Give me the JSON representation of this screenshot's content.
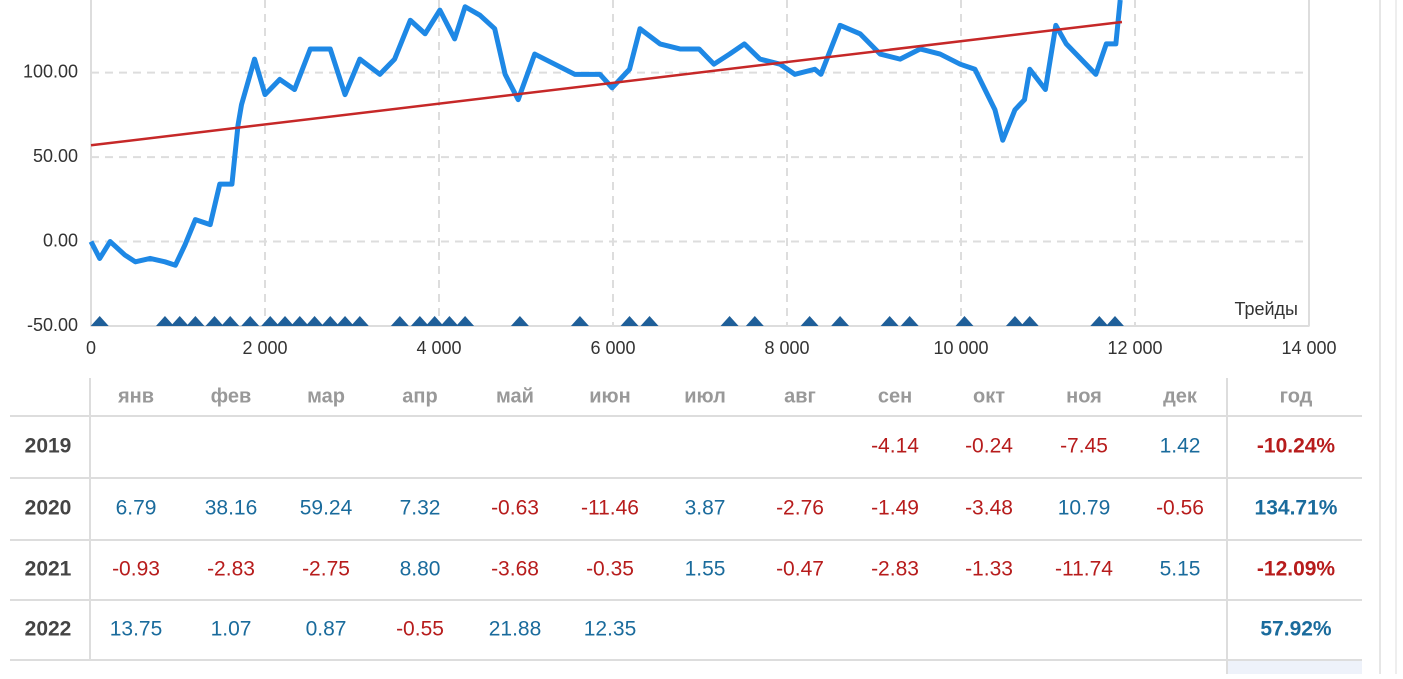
{
  "chart_data": {
    "type": "line",
    "xlim": [
      0,
      14000
    ],
    "ylim": [
      -50,
      143
    ],
    "xticks": [
      0,
      {
        "value": 2000,
        "label": "2 000"
      },
      {
        "value": 4000,
        "label": "4 000"
      },
      {
        "value": 6000,
        "label": "6 000"
      },
      {
        "value": 8000,
        "label": "8 000"
      },
      {
        "value": 10000,
        "label": "10 000"
      },
      {
        "value": 12000,
        "label": "12 000"
      },
      {
        "value": 14000,
        "label": "14 000"
      }
    ],
    "yticks": [
      {
        "value": -50,
        "label": "-50.00"
      },
      {
        "value": 0,
        "label": "0.00"
      },
      {
        "value": 50,
        "label": "50.00"
      },
      {
        "value": 100,
        "label": "100.00"
      }
    ],
    "x_label": "Трейды",
    "grid": true,
    "series": [
      {
        "color": "#1e88e5",
        "x": [
          0,
          100,
          220,
          390,
          510,
          680,
          850,
          970,
          1080,
          1200,
          1370,
          1480,
          1620,
          1690,
          1730,
          1880,
          2000,
          2170,
          2340,
          2520,
          2750,
          2920,
          3090,
          3320,
          3490,
          3670,
          3840,
          4010,
          4180,
          4300,
          4470,
          4640,
          4760,
          4910,
          5100,
          5330,
          5560,
          5850,
          5990,
          6190,
          6310,
          6540,
          6770,
          6990,
          7160,
          7340,
          7510,
          7690,
          7920,
          8090,
          8320,
          8390,
          8610,
          8840,
          9070,
          9300,
          9530,
          9760,
          9990,
          10160,
          10390,
          10480,
          10620,
          10730,
          10790,
          10970,
          11090,
          11210,
          11380,
          11550,
          11670,
          11780,
          11830
        ],
        "values": [
          0,
          -10,
          0,
          -8,
          -12,
          -10,
          -12,
          -14,
          -2,
          13,
          10,
          34,
          34,
          69,
          81,
          108,
          87,
          96,
          90,
          114,
          114,
          87,
          108,
          99,
          108,
          131,
          123,
          137,
          120,
          139,
          134,
          126,
          99,
          84,
          111,
          105,
          99,
          99,
          91,
          102,
          126,
          117,
          114,
          114,
          105,
          111,
          117,
          108,
          105,
          99,
          102,
          99,
          128,
          123,
          111,
          108,
          114,
          111,
          105,
          102,
          78,
          60,
          78,
          84,
          102,
          90,
          128,
          117,
          108,
          99,
          117,
          117,
          143
        ]
      },
      {
        "color": "#c62828",
        "x": [
          0,
          11850
        ],
        "values": [
          57,
          130
        ]
      }
    ],
    "markers": {
      "color": "#1f5f99",
      "x": [
        100,
        850,
        1020,
        1200,
        1420,
        1600,
        1830,
        2060,
        2230,
        2400,
        2570,
        2750,
        2920,
        3090,
        3550,
        3780,
        3950,
        4120,
        4300,
        4930,
        5620,
        6190,
        6420,
        7340,
        7630,
        8260,
        8610,
        9180,
        9410,
        10040,
        10620,
        10790,
        11590,
        11770
      ]
    }
  },
  "table": {
    "header": [
      "янв",
      "фев",
      "мар",
      "апр",
      "май",
      "июн",
      "июл",
      "авг",
      "сен",
      "окт",
      "ноя",
      "дек",
      "год"
    ],
    "positive_color": "#1a6b9c",
    "negative_color": "#b71c1c",
    "rows": [
      [
        "2019",
        null,
        null,
        null,
        null,
        null,
        null,
        null,
        null,
        "-4.14",
        "-0.24",
        "-7.45",
        "1.42",
        "-10.24%"
      ],
      [
        "2020",
        "6.79",
        "38.16",
        "59.24",
        "7.32",
        "-0.63",
        "-11.46",
        "3.87",
        "-2.76",
        "-1.49",
        "-3.48",
        "10.79",
        "-0.56",
        "134.71%"
      ],
      [
        "2021",
        "-0.93",
        "-2.83",
        "-2.75",
        "8.80",
        "-3.68",
        "-0.35",
        "1.55",
        "-0.47",
        "-2.83",
        "-1.33",
        "-11.74",
        "5.15",
        "-12.09%"
      ],
      [
        "2022",
        "13.75",
        "1.07",
        "0.87",
        "-0.55",
        "21.88",
        "12.35",
        null,
        null,
        null,
        null,
        null,
        null,
        "57.92%"
      ]
    ]
  }
}
